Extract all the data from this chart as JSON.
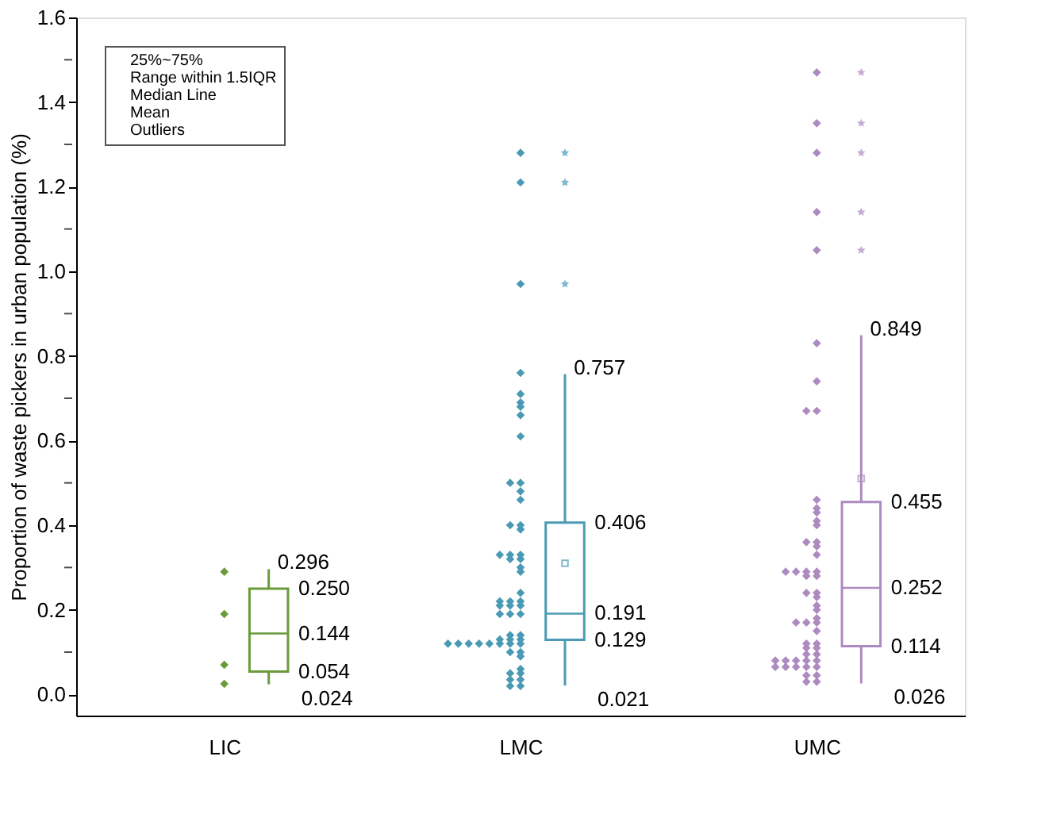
{
  "chart_data": {
    "type": "box",
    "ylabel": "Proportion of waste pickers in urban population (%)",
    "categories": [
      "LIC",
      "LMC",
      "UMC"
    ],
    "colors": [
      "#6a9a3a",
      "#4a9ab5",
      "#ad8abf"
    ],
    "boxes": [
      {
        "low": 0.024,
        "q1": 0.054,
        "median": 0.144,
        "q3": 0.25,
        "high": 0.296
      },
      {
        "low": 0.021,
        "q1": 0.129,
        "median": 0.191,
        "q3": 0.406,
        "high": 0.757,
        "mean": 0.31,
        "outliers": [
          1.28,
          1.21,
          0.97
        ]
      },
      {
        "low": 0.026,
        "q1": 0.114,
        "median": 0.252,
        "q3": 0.455,
        "high": 0.849,
        "mean": 0.51,
        "outliers": [
          1.47,
          1.35,
          1.28,
          1.14,
          1.05
        ]
      }
    ],
    "series": [
      {
        "type": "scatter",
        "color": "#6a9a3a",
        "x": [
          "LIC",
          "LIC",
          "LIC",
          "LIC"
        ],
        "values": [
          0.29,
          0.19,
          0.07,
          0.025
        ]
      },
      {
        "type": "scatter",
        "color": "#4a9ab5",
        "x": [
          "LMC",
          "LMC",
          "LMC",
          "LMC",
          "LMC",
          "LMC",
          "LMC",
          "LMC",
          "LMC",
          "LMC",
          "LMC",
          "LMC",
          "LMC",
          "LMC",
          "LMC",
          "LMC",
          "LMC",
          "LMC",
          "LMC",
          "LMC",
          "LMC",
          "LMC",
          "LMC",
          "LMC",
          "LMC",
          "LMC",
          "LMC",
          "LMC",
          "LMC",
          "LMC",
          "LMC",
          "LMC",
          "LMC",
          "LMC",
          "LMC",
          "LMC",
          "LMC",
          "LMC",
          "LMC",
          "LMC",
          "LMC",
          "LMC",
          "LMC",
          "LMC",
          "LMC",
          "LMC",
          "LMC",
          "LMC",
          "LMC",
          "LMC",
          "LMC",
          "LMC",
          "LMC",
          "LMC",
          "LMC",
          "LMC"
        ],
        "values": [
          1.28,
          1.21,
          0.97,
          0.76,
          0.71,
          0.69,
          0.68,
          0.66,
          0.61,
          0.5,
          0.5,
          0.48,
          0.46,
          0.4,
          0.4,
          0.39,
          0.33,
          0.33,
          0.33,
          0.32,
          0.32,
          0.3,
          0.29,
          0.24,
          0.22,
          0.22,
          0.22,
          0.21,
          0.21,
          0.21,
          0.19,
          0.19,
          0.19,
          0.14,
          0.14,
          0.13,
          0.13,
          0.13,
          0.12,
          0.12,
          0.12,
          0.12,
          0.12,
          0.12,
          0.12,
          0.12,
          0.1,
          0.1,
          0.09,
          0.06,
          0.05,
          0.05,
          0.035,
          0.035,
          0.02,
          0.02
        ]
      },
      {
        "type": "scatter",
        "color": "#ad8abf",
        "x": [
          "UMC",
          "UMC",
          "UMC",
          "UMC",
          "UMC",
          "UMC",
          "UMC",
          "UMC",
          "UMC",
          "UMC",
          "UMC",
          "UMC",
          "UMC",
          "UMC",
          "UMC",
          "UMC",
          "UMC",
          "UMC",
          "UMC",
          "UMC",
          "UMC",
          "UMC",
          "UMC",
          "UMC",
          "UMC",
          "UMC",
          "UMC",
          "UMC",
          "UMC",
          "UMC",
          "UMC",
          "UMC",
          "UMC",
          "UMC",
          "UMC",
          "UMC",
          "UMC",
          "UMC",
          "UMC",
          "UMC",
          "UMC",
          "UMC",
          "UMC",
          "UMC",
          "UMC",
          "UMC",
          "UMC",
          "UMC",
          "UMC",
          "UMC",
          "UMC",
          "UMC",
          "UMC",
          "UMC"
        ],
        "values": [
          1.47,
          1.35,
          1.28,
          1.14,
          1.05,
          0.83,
          0.74,
          0.67,
          0.67,
          0.46,
          0.44,
          0.43,
          0.41,
          0.4,
          0.36,
          0.36,
          0.35,
          0.33,
          0.29,
          0.29,
          0.29,
          0.29,
          0.28,
          0.28,
          0.24,
          0.24,
          0.23,
          0.21,
          0.2,
          0.18,
          0.17,
          0.17,
          0.17,
          0.15,
          0.12,
          0.12,
          0.11,
          0.11,
          0.095,
          0.095,
          0.08,
          0.08,
          0.08,
          0.08,
          0.08,
          0.065,
          0.065,
          0.065,
          0.065,
          0.065,
          0.045,
          0.045,
          0.03,
          0.03
        ]
      }
    ],
    "ylim": [
      -0.05,
      1.6
    ],
    "yticks": [
      {
        "value": 0,
        "label": "0.0"
      },
      {
        "value": 0.1,
        "label": null
      },
      0.2,
      {
        "value": 0.3,
        "label": null
      },
      0.4,
      {
        "value": 0.5,
        "label": null
      },
      0.6,
      {
        "value": 0.7,
        "label": null
      },
      0.8,
      {
        "value": 0.9,
        "label": null
      },
      {
        "value": 1,
        "label": "1.0"
      },
      {
        "value": 1.1,
        "label": null
      },
      1.2,
      {
        "value": 1.3,
        "label": null
      },
      1.4,
      {
        "value": 1.5,
        "label": null
      },
      1.6
    ],
    "annotations": [
      "25%~75%",
      "Range within 1.5IQR",
      "Median Line",
      "Mean",
      "Outliers",
      "0.296",
      "0.250",
      "0.144",
      "0.054",
      "0.024",
      "0.757",
      "0.406",
      "0.191",
      "0.129",
      "0.021",
      "0.849",
      "0.455",
      "0.252",
      "0.114",
      "0.026"
    ],
    "grid": false,
    "marker": "diamond"
  }
}
